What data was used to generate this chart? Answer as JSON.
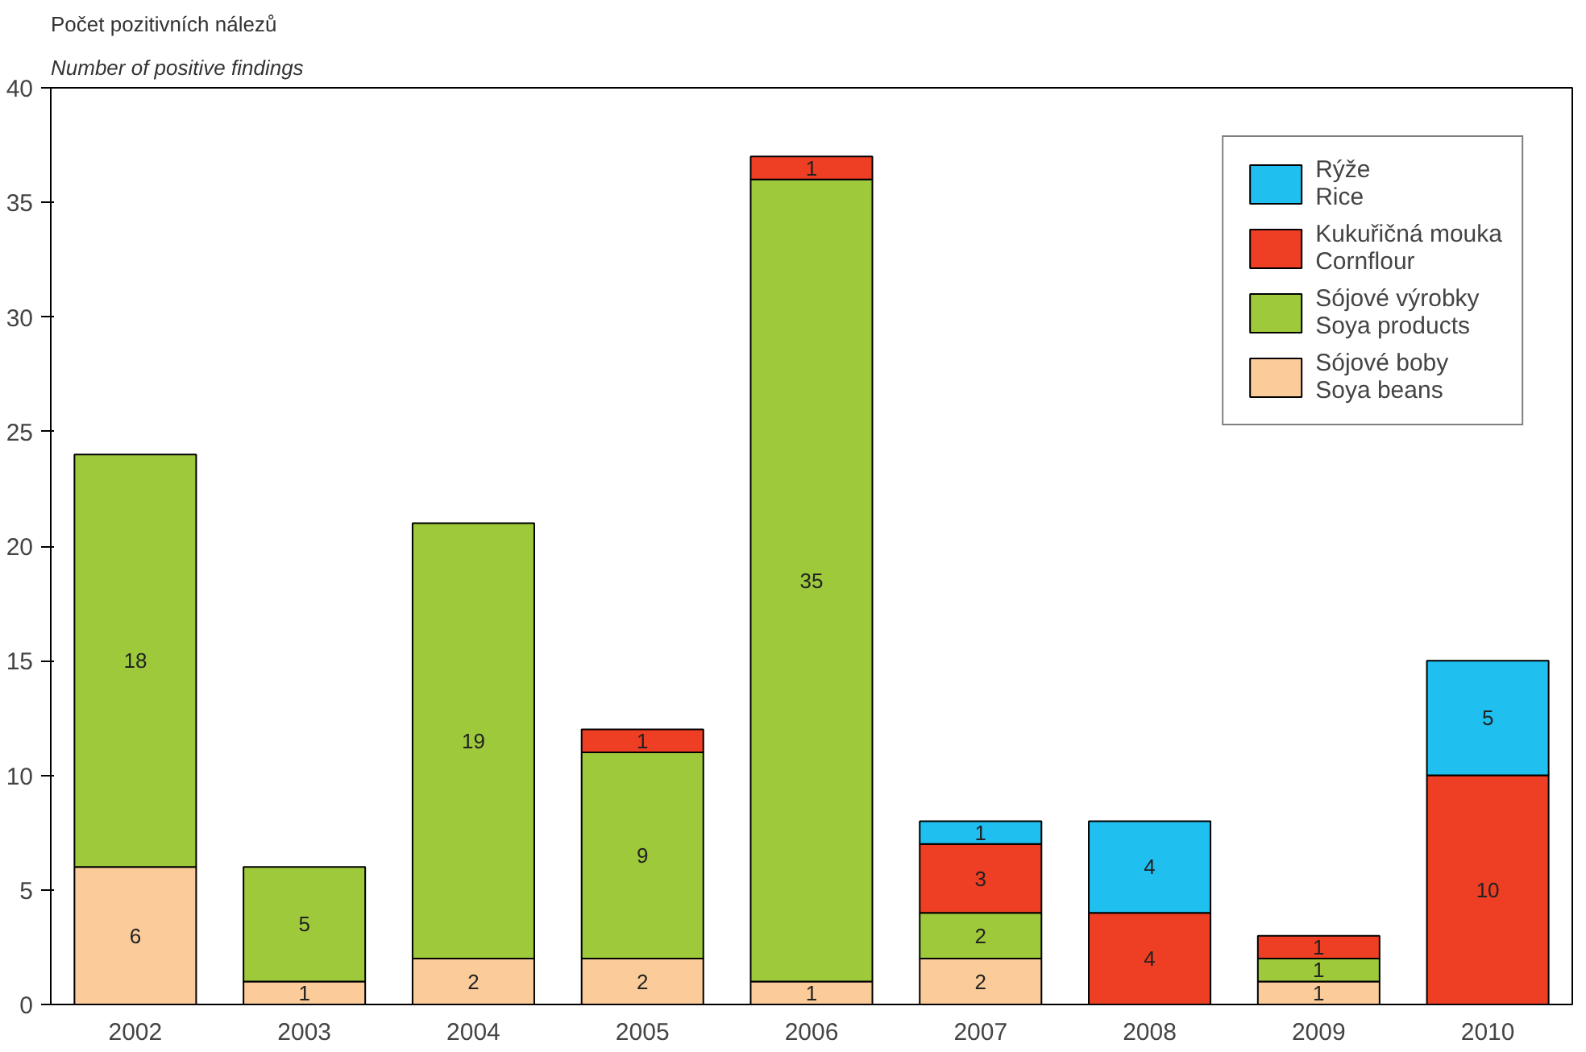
{
  "chart_data": {
    "type": "bar",
    "stacked": true,
    "title": "Počet pozitivních nálezů",
    "subtitle": "Number of positive findings",
    "categories": [
      "2002",
      "2003",
      "2004",
      "2005",
      "2006",
      "2007",
      "2008",
      "2009",
      "2010"
    ],
    "series": [
      {
        "name": "Sójové boby\nSoya beans",
        "color": "#fbcb99",
        "values": [
          6,
          1,
          2,
          2,
          1,
          2,
          null,
          1,
          null
        ]
      },
      {
        "name": "Sójové výrobky\nSoya products",
        "color": "#9dc93b",
        "values": [
          18,
          5,
          19,
          9,
          35,
          2,
          null,
          1,
          null
        ]
      },
      {
        "name": "Kukuřičná mouka\nCornflour",
        "color": "#ee3e23",
        "values": [
          null,
          null,
          null,
          1,
          1,
          3,
          4,
          1,
          10
        ]
      },
      {
        "name": "Rýže\nRice",
        "color": "#1fbfef",
        "values": [
          null,
          null,
          null,
          null,
          null,
          1,
          4,
          null,
          5
        ]
      }
    ],
    "ylim": [
      0,
      40
    ],
    "yticks": [
      0,
      5,
      10,
      15,
      20,
      25,
      30,
      35,
      40
    ],
    "data_labels": true,
    "legend": "top right",
    "grid": false
  }
}
